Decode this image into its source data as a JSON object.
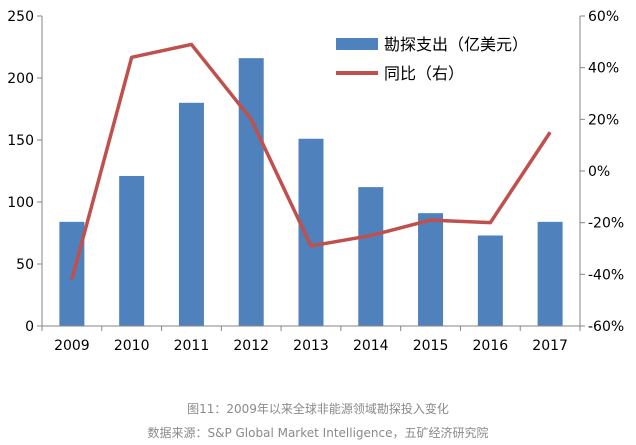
{
  "chart_data": {
    "type": "bar",
    "categories": [
      "2009",
      "2010",
      "2011",
      "2012",
      "2013",
      "2014",
      "2015",
      "2016",
      "2017"
    ],
    "series": [
      {
        "name": "勘探支出（亿美元）",
        "type": "bar",
        "axis": "left",
        "color": "#4F81BD",
        "values": [
          84,
          121,
          180,
          216,
          151,
          112,
          91,
          73,
          84
        ]
      },
      {
        "name": "同比（右）",
        "type": "line",
        "axis": "right",
        "color": "#C0504D",
        "values": [
          -42,
          44,
          49,
          20,
          -29,
          -25,
          -19,
          -20,
          15
        ]
      }
    ],
    "y_left": {
      "range": [
        0,
        250
      ],
      "ticks": [
        "0",
        "50",
        "100",
        "150",
        "200",
        "250"
      ]
    },
    "y_right": {
      "range": [
        -60,
        60
      ],
      "ticks": [
        "-60%",
        "-40%",
        "-20%",
        "0%",
        "20%",
        "40%",
        "60%"
      ]
    },
    "legend_position": "top-right",
    "grid": false
  },
  "captions": {
    "line1": "图11：2009年以来全球非能源领域勘探投入变化",
    "line2": "数据来源：S&P Global Market Intelligence，五矿经济研究院"
  }
}
